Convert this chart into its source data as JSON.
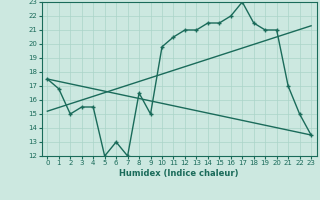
{
  "title": "",
  "xlabel": "Humidex (Indice chaleur)",
  "xlim": [
    -0.5,
    23.5
  ],
  "ylim": [
    12,
    23
  ],
  "yticks": [
    12,
    13,
    14,
    15,
    16,
    17,
    18,
    19,
    20,
    21,
    22,
    23
  ],
  "xticks": [
    0,
    1,
    2,
    3,
    4,
    5,
    6,
    7,
    8,
    9,
    10,
    11,
    12,
    13,
    14,
    15,
    16,
    17,
    18,
    19,
    20,
    21,
    22,
    23
  ],
  "bg_color": "#cce8e0",
  "line_color": "#1a6b5a",
  "grid_color": "#aad4c8",
  "line1_x": [
    0,
    1,
    2,
    3,
    4,
    5,
    6,
    7,
    8,
    9,
    10,
    11,
    12,
    13,
    14,
    15,
    16,
    17,
    18,
    19,
    20,
    21,
    22,
    23
  ],
  "line1_y": [
    17.5,
    16.8,
    15.0,
    15.5,
    15.5,
    12.0,
    13.0,
    12.0,
    16.5,
    15.0,
    19.8,
    20.5,
    21.0,
    21.0,
    21.5,
    21.5,
    22.0,
    23.0,
    21.5,
    21.0,
    21.0,
    17.0,
    15.0,
    13.5
  ],
  "line2_x": [
    0,
    23
  ],
  "line2_y": [
    15.2,
    21.3
  ],
  "line3_x": [
    0,
    23
  ],
  "line3_y": [
    17.5,
    13.5
  ],
  "xlabel_fontsize": 6,
  "tick_fontsize": 5
}
